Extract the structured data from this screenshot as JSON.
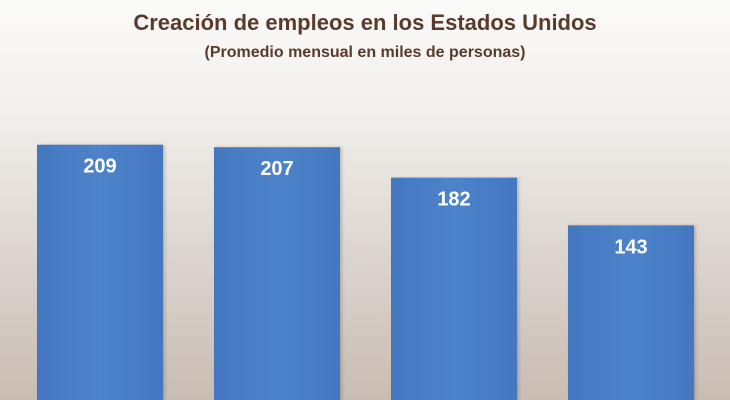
{
  "chart_data": {
    "type": "bar",
    "title": "Creación de empleos en los Estados Unidos",
    "subtitle": "(Promedio mensual en miles de personas)",
    "values": [
      209,
      207,
      182,
      143
    ],
    "data_labels": [
      "209",
      "207",
      "182",
      "143"
    ],
    "xlabel": "",
    "ylabel": "",
    "bar_color": "#4a7ec6",
    "label_color": "#ffffff",
    "grid": false,
    "legend": "none"
  }
}
